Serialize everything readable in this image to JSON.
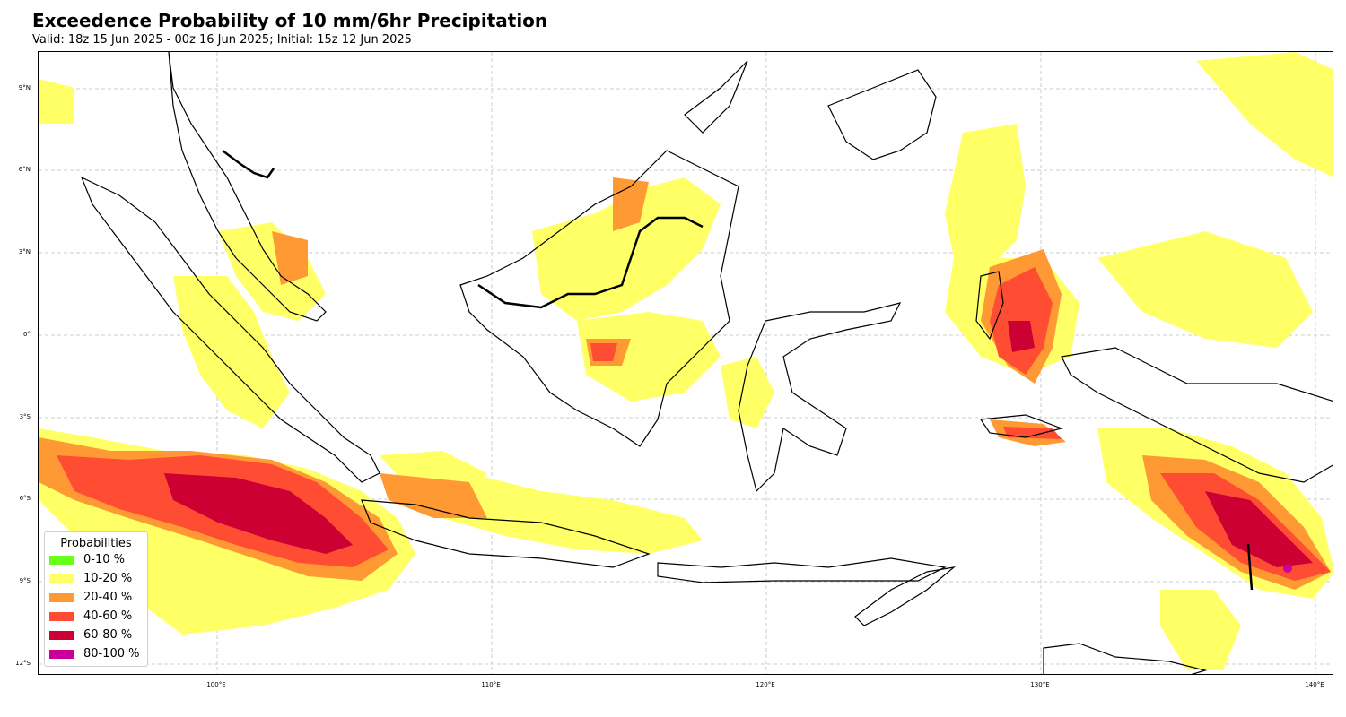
{
  "title": "Exceedence Probability of 10 mm/6hr Precipitation",
  "subtitle": "Valid: 18z 15 Jun 2025 - 00z 16 Jun 2025; Initial: 15z 12 Jun 2025",
  "latitude_labels": [
    "9°N",
    "6°N",
    "3°N",
    "0°",
    "3°S",
    "6°S",
    "9°S",
    "12°S"
  ],
  "longitude_labels": [
    "100°E",
    "110°E",
    "120°E",
    "130°E",
    "140°E"
  ],
  "legend": {
    "title": "Probabilities",
    "items": [
      {
        "label": "0-10 %",
        "color": "#66ff1a"
      },
      {
        "label": "10-20 %",
        "color": "#ffff66"
      },
      {
        "label": "20-40 %",
        "color": "#ff9933"
      },
      {
        "label": "40-60 %",
        "color": "#ff4d33"
      },
      {
        "label": "60-80 %",
        "color": "#cc0033"
      },
      {
        "label": "80-100 %",
        "color": "#cc0099"
      }
    ]
  },
  "map": {
    "region": "Maritime Continent / Indonesia",
    "gridlines": "dashed light gray",
    "coastlines": "black",
    "lat_range": [
      "12°S",
      "10°N"
    ],
    "lon_range": [
      "93.5°E",
      "140.7°E"
    ]
  }
}
